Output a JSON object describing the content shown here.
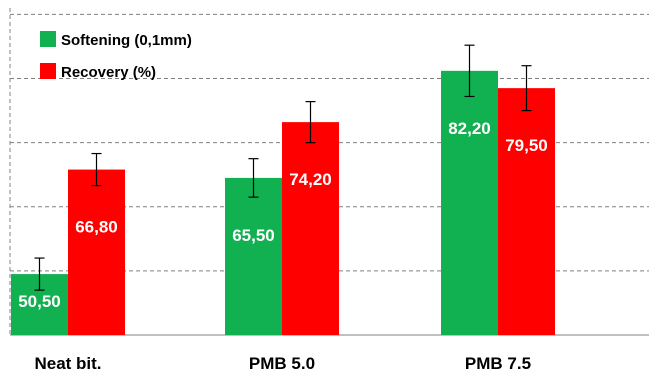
{
  "chart_data": {
    "type": "bar",
    "categories": [
      "Neat bit.",
      "PMB 5.0",
      "PMB 7.5"
    ],
    "series": [
      {
        "name": "Softening (0,1mm)",
        "values": [
          50.5,
          65.5,
          82.2
        ],
        "labels": [
          "50,50",
          "65,50",
          "82,20"
        ],
        "error": [
          2.5,
          3.0,
          4.0
        ],
        "color": "#11b050"
      },
      {
        "name": "Recovery (%)",
        "values": [
          66.8,
          74.2,
          79.5
        ],
        "labels": [
          "66,80",
          "74,20",
          "79,50"
        ],
        "error": [
          2.5,
          3.2,
          3.5
        ],
        "color": "#ff0000"
      }
    ],
    "ylim": [
      41,
      92
    ],
    "y_gridlines": [
      51,
      61,
      71,
      81,
      91
    ],
    "grid": true,
    "legend_position": "top-left",
    "title": "",
    "xlabel": "",
    "ylabel": ""
  }
}
